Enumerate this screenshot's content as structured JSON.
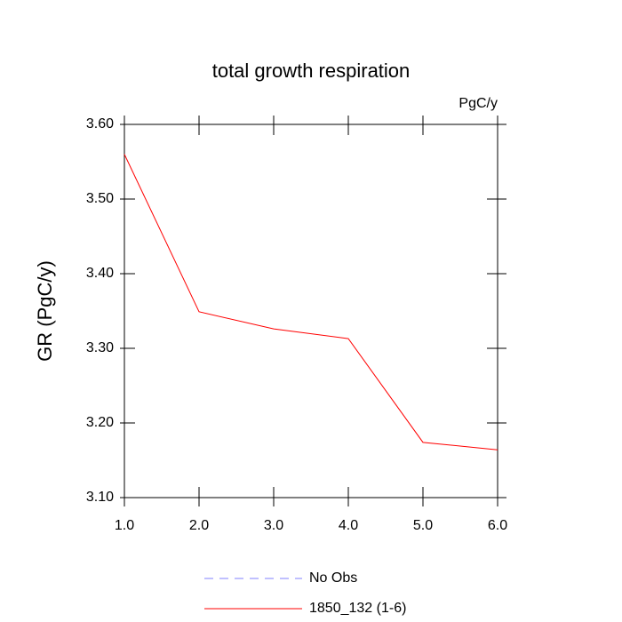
{
  "chart_data": {
    "type": "line",
    "title": "total growth respiration",
    "units": "PgC/y",
    "y_label": "GR  (PgC/y)",
    "x": [
      1,
      2,
      3,
      4,
      5,
      6
    ],
    "series": [
      {
        "name": "No Obs",
        "color": "#8080ff",
        "dashed": true,
        "values": [
          null,
          null,
          null,
          null,
          null,
          null
        ]
      },
      {
        "name": "1850_132 (1-6)",
        "color": "#ff0000",
        "dashed": false,
        "values": [
          3.56,
          3.349,
          3.326,
          3.313,
          3.174,
          3.164
        ]
      }
    ],
    "xlim": [
      1,
      6
    ],
    "xticks": [
      {
        "value": 1,
        "label": "1.0"
      },
      {
        "value": 2,
        "label": "2.0"
      },
      {
        "value": 3,
        "label": "3.0"
      },
      {
        "value": 4,
        "label": "4.0"
      },
      {
        "value": 5,
        "label": "5.0"
      },
      {
        "value": 6,
        "label": "6.0"
      }
    ],
    "ylim": [
      3.1,
      3.6
    ],
    "yticks": [
      {
        "value": 3.1,
        "label": "3.10"
      },
      {
        "value": 3.2,
        "label": "3.20"
      },
      {
        "value": 3.3,
        "label": "3.30"
      },
      {
        "value": 3.4,
        "label": "3.40"
      },
      {
        "value": 3.5,
        "label": "3.50"
      },
      {
        "value": 3.6,
        "label": "3.60"
      }
    ],
    "grid": false
  }
}
